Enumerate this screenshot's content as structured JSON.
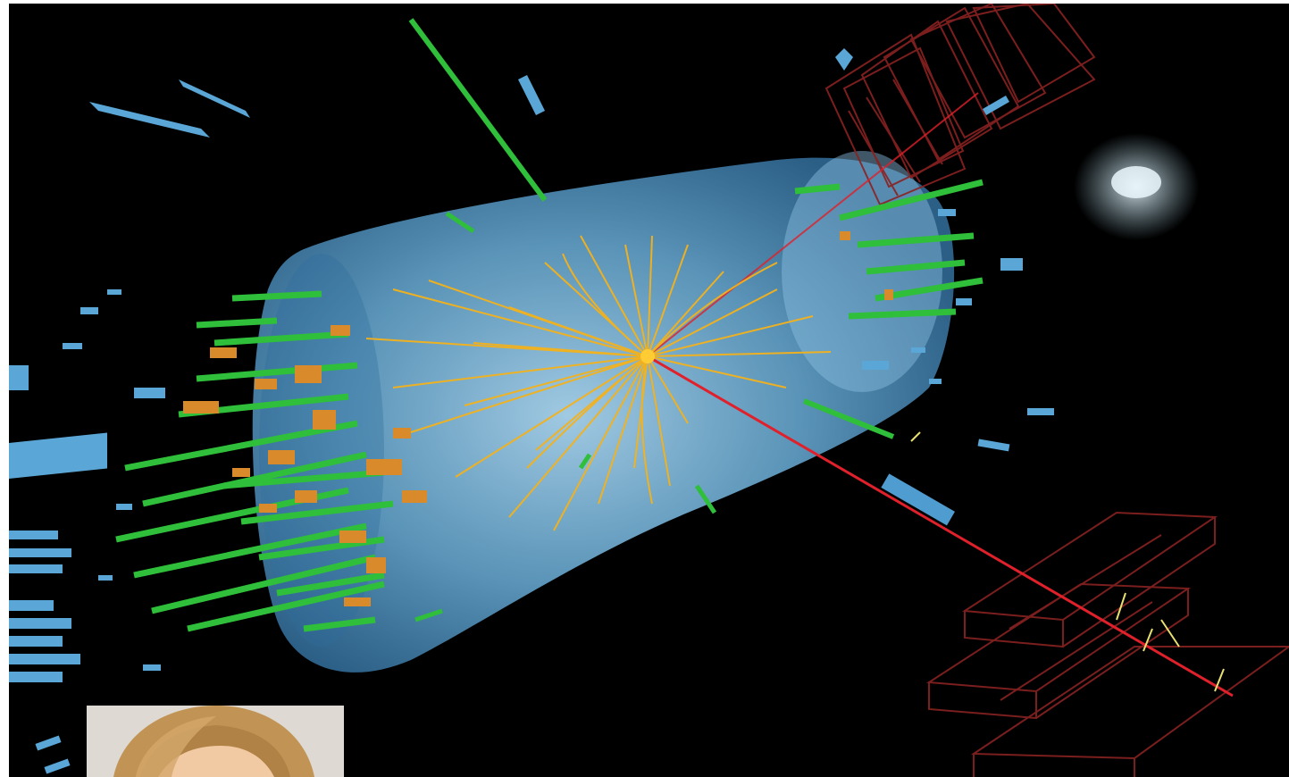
{
  "colors": {
    "background": "#000000",
    "detector_cylinder": "#7ab8e0",
    "tracks": "#f5b21a",
    "em_deposits": "#2fbf3a",
    "had_deposits": "#d98a2a",
    "muon_track": "#e0202a",
    "muon_chambers": "#7a1e1e",
    "calo_blocks": "#5aa6d6",
    "hit_cloud": "#c8e0ea"
  },
  "icons": {
    "portrait": "person-portrait"
  }
}
